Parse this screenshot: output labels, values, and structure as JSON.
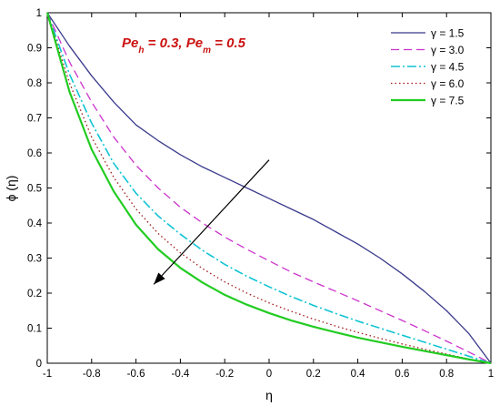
{
  "chart_data": {
    "type": "line",
    "title": "",
    "xlabel": "η",
    "ylabel": "ϕ (η)",
    "xlim": [
      -1,
      1
    ],
    "ylim": [
      0,
      1
    ],
    "x_ticks": [
      "-1",
      "-0.8",
      "-0.6",
      "-0.4",
      "-0.2",
      "0",
      "0.2",
      "0.4",
      "0.6",
      "0.8",
      "1"
    ],
    "y_ticks": [
      "0",
      "0.1",
      "0.2",
      "0.3",
      "0.4",
      "0.5",
      "0.6",
      "0.7",
      "0.8",
      "0.9",
      "1"
    ],
    "grid": false,
    "legend_position": "top-right",
    "annotation": {
      "text": "Peh = 0.3, Pem = 0.5",
      "color": "#cc1111",
      "parts": [
        {
          "t": "Pe",
          "sub": false
        },
        {
          "t": "h",
          "sub": true
        },
        {
          "t": " = 0.3, Pe",
          "sub": false
        },
        {
          "t": "m",
          "sub": true
        },
        {
          "t": " = 0.5",
          "sub": false
        }
      ]
    },
    "arrow": {
      "from": [
        0.0,
        0.58
      ],
      "to": [
        -0.52,
        0.225
      ],
      "meaning": "increasing γ"
    },
    "x": [
      -1.0,
      -0.9,
      -0.8,
      -0.7,
      -0.6,
      -0.5,
      -0.4,
      -0.3,
      -0.2,
      -0.1,
      0.0,
      0.1,
      0.2,
      0.3,
      0.4,
      0.5,
      0.6,
      0.7,
      0.8,
      0.9,
      1.0
    ],
    "series": [
      {
        "name": "γ = 1.5",
        "color": "#3a3a8c",
        "dash": "",
        "width": 1.3,
        "values": [
          1.0,
          0.905,
          0.82,
          0.745,
          0.68,
          0.635,
          0.595,
          0.56,
          0.53,
          0.5,
          0.47,
          0.44,
          0.41,
          0.375,
          0.34,
          0.3,
          0.255,
          0.205,
          0.15,
          0.085,
          0.0
        ]
      },
      {
        "name": "γ = 3.0",
        "color": "#cc33cc",
        "dash": "9,5",
        "width": 1.3,
        "values": [
          1.0,
          0.86,
          0.745,
          0.645,
          0.565,
          0.5,
          0.445,
          0.4,
          0.36,
          0.325,
          0.292,
          0.26,
          0.232,
          0.205,
          0.178,
          0.15,
          0.122,
          0.093,
          0.063,
          0.032,
          0.0
        ]
      },
      {
        "name": "γ = 4.5",
        "color": "#11c4d4",
        "dash": "10,3,2,3",
        "width": 1.6,
        "values": [
          1.0,
          0.825,
          0.685,
          0.57,
          0.485,
          0.42,
          0.368,
          0.322,
          0.282,
          0.248,
          0.218,
          0.19,
          0.165,
          0.142,
          0.12,
          0.1,
          0.08,
          0.06,
          0.04,
          0.02,
          0.0
        ]
      },
      {
        "name": "γ = 6.0",
        "color": "#a01818",
        "dash": "1.5,3",
        "width": 1.3,
        "values": [
          1.0,
          0.8,
          0.645,
          0.53,
          0.44,
          0.37,
          0.315,
          0.27,
          0.232,
          0.2,
          0.172,
          0.148,
          0.126,
          0.106,
          0.088,
          0.071,
          0.055,
          0.04,
          0.026,
          0.012,
          0.0
        ]
      },
      {
        "name": "γ = 7.5",
        "color": "#22cc22",
        "dash": "",
        "width": 2.2,
        "values": [
          1.0,
          0.775,
          0.61,
          0.49,
          0.395,
          0.325,
          0.272,
          0.23,
          0.195,
          0.167,
          0.143,
          0.122,
          0.104,
          0.088,
          0.073,
          0.06,
          0.047,
          0.035,
          0.023,
          0.011,
          0.0
        ]
      }
    ]
  }
}
